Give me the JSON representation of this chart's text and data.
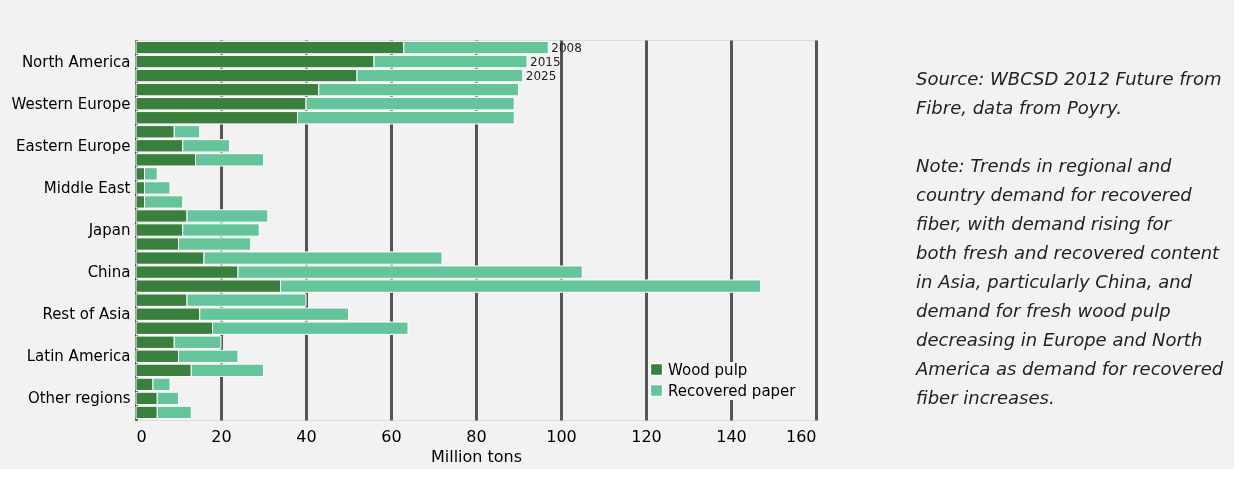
{
  "chart_data": {
    "type": "bar",
    "orientation": "horizontal",
    "stacked": true,
    "categories": [
      null,
      "North America",
      null,
      null,
      "Western Europe",
      null,
      null,
      "Eastern Europe",
      null,
      null,
      "Middle East",
      null,
      null,
      "Japan",
      null,
      null,
      "China",
      null,
      null,
      "Rest of Asia",
      null,
      null,
      "Latin America",
      null,
      null,
      "Other regions",
      null
    ],
    "series": [
      {
        "name": "Wood pulp",
        "color": "#3a7f3c",
        "values": [
          63,
          56,
          52,
          43,
          40,
          38,
          9,
          11,
          14,
          2,
          2,
          2,
          12,
          11,
          10,
          16,
          24,
          34,
          12,
          15,
          18,
          9,
          10,
          13,
          4,
          5,
          5
        ]
      },
      {
        "name": "Recovered paper",
        "color": "#66c49a",
        "values": [
          34,
          36,
          39,
          47,
          49,
          51,
          6,
          11,
          16,
          3,
          6,
          9,
          19,
          18,
          17,
          56,
          81,
          113,
          28,
          35,
          46,
          11,
          14,
          17,
          4,
          5,
          8
        ]
      }
    ],
    "xlabel": "Million tons",
    "xlim": [
      0,
      160
    ],
    "xticks": [
      0,
      20,
      40,
      60,
      80,
      100,
      120,
      140,
      160
    ],
    "grid": "x",
    "legend": "bottom right",
    "annotations": [
      {
        "text": "2008",
        "x": 97
      },
      {
        "text": "2015",
        "x": 92
      },
      {
        "text": "2025",
        "x": 91
      },
      "Source: WBCSD 2012 Future from Fibre, data from Poyry.",
      "Note: Trends in regional and country demand for recovered fiber, with demand rising for both fresh and recovered content in Asia, particularly China, and demand for fresh wood pulp decreasing in Europe and North America as demand for recovered fiber increases."
    ]
  }
}
